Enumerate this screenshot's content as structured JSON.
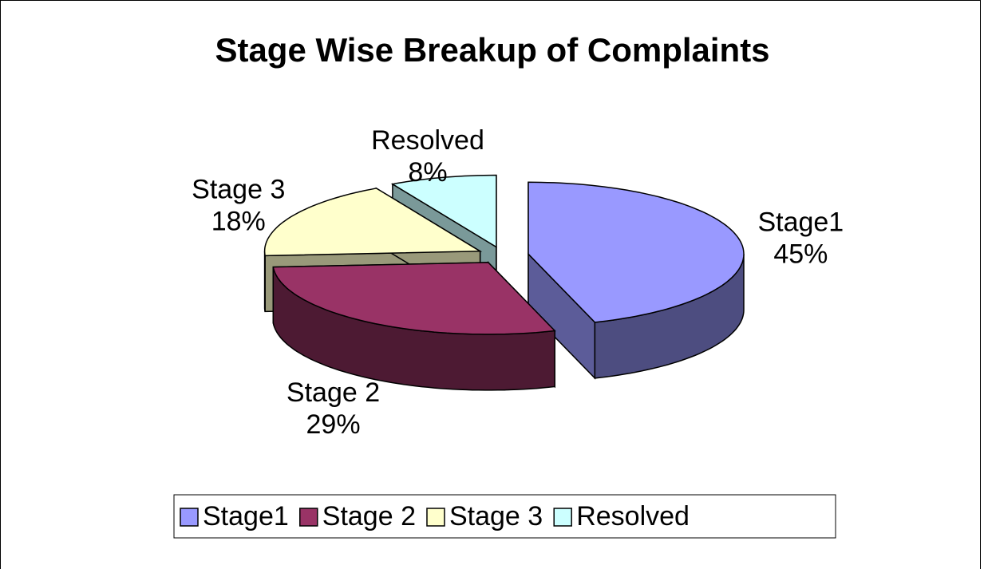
{
  "chart_data": {
    "type": "pie",
    "title": "Stage Wise Breakup of Complaints",
    "categories": [
      "Stage1",
      "Stage 2",
      "Stage 3",
      "Resolved"
    ],
    "values": [
      45,
      29,
      18,
      8
    ],
    "value_labels": [
      "45%",
      "29%",
      "18%",
      "8%"
    ],
    "colors": [
      "#9999ff",
      "#993366",
      "#ffffcc",
      "#ccffff"
    ],
    "legend": "bottom"
  }
}
